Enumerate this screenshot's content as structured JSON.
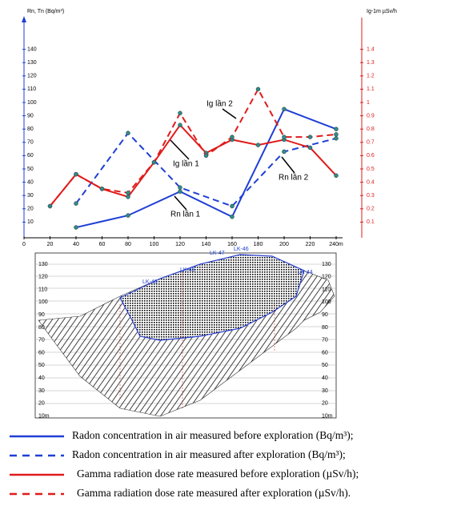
{
  "chart_data": {
    "type": "line",
    "y_label": "Rn, Tn (Bq/m³)",
    "y2_label": "Ig-1m  µSv/h",
    "xlim": [
      0,
      240
    ],
    "xticks": [
      0,
      20,
      40,
      60,
      80,
      100,
      120,
      140,
      160,
      180,
      200,
      220,
      {
        "value": 240,
        "label": "240m"
      }
    ],
    "ylim": [
      0,
      150
    ],
    "yticks": [
      10,
      20,
      30,
      40,
      50,
      60,
      70,
      80,
      90,
      100,
      110,
      120,
      130,
      140
    ],
    "y2lim": [
      0,
      1.5
    ],
    "y2ticks": [
      0.1,
      0.2,
      0.3,
      0.4,
      0.5,
      0.6,
      0.7,
      0.8,
      0.9,
      1.0,
      1.1,
      1.2,
      1.3,
      1.4
    ],
    "series": [
      {
        "name": "Radon concentration in air measured before exploration (Bq/m³);",
        "color": "#1f3fd6",
        "dashed": false,
        "x": [
          40,
          80,
          120,
          160,
          200,
          240
        ],
        "values": [
          6,
          15,
          33,
          14,
          95,
          80
        ]
      },
      {
        "name": "Radon concentration in air measured after exploration (Bq/m³);",
        "color": "#1f3fd6",
        "dashed": true,
        "x": [
          40,
          80,
          120,
          160,
          200,
          240
        ],
        "values": [
          24,
          77,
          36,
          22,
          63,
          73
        ]
      },
      {
        "name": "Gamma radiation dose rate measured before exploration (µSv/h);",
        "color": "#e01b1b",
        "dashed": false,
        "axis": "y2",
        "x": [
          20,
          40,
          60,
          80,
          100,
          120,
          140,
          160,
          180,
          200,
          220,
          240
        ],
        "values": [
          0.22,
          0.46,
          0.35,
          0.29,
          0.55,
          0.83,
          0.62,
          0.72,
          0.68,
          0.72,
          0.66,
          0.45
        ]
      },
      {
        "name": "Gamma radiation dose rate measured after exploration (µSv/h).",
        "color": "#e01b1b",
        "dashed": true,
        "axis": "y2",
        "x": [
          20,
          40,
          60,
          80,
          100,
          120,
          140,
          160,
          180,
          200,
          220,
          240
        ],
        "values": [
          0.22,
          0.46,
          0.35,
          0.32,
          0.55,
          0.92,
          0.6,
          0.74,
          1.1,
          0.74,
          0.74,
          0.76
        ]
      }
    ],
    "annotations": [
      "Ig lần 2",
      "Ig lần 1",
      "Rn lần 2",
      "Rn lần 1"
    ]
  },
  "section": {
    "boreholes": [
      "LK-47",
      "LK-46",
      "LK-45",
      "LK-48",
      "LK-44"
    ],
    "elevations": [
      "130",
      "120",
      "110",
      "100",
      "90",
      "80",
      "70",
      "60",
      "50",
      "40",
      "30",
      "20",
      "10m"
    ]
  }
}
